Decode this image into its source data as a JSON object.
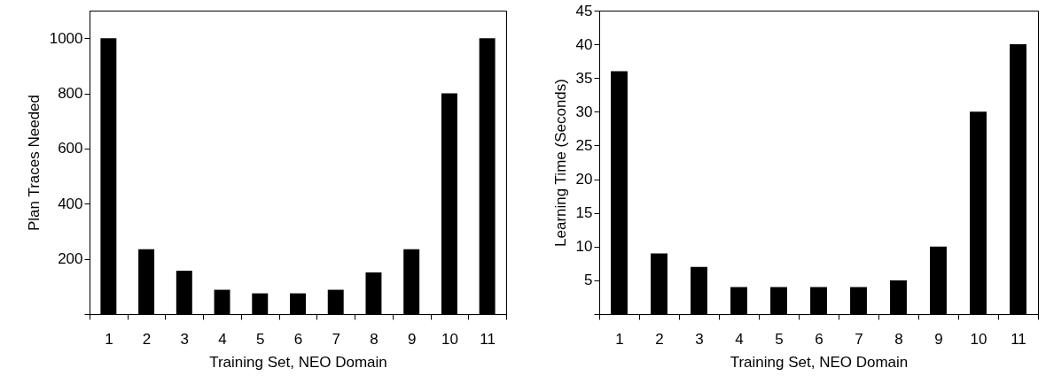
{
  "chart_data": [
    {
      "type": "bar",
      "xlabel": "Training Set, NEO Domain",
      "ylabel": "Plan Traces Needed",
      "categories": [
        "1",
        "2",
        "3",
        "4",
        "5",
        "6",
        "7",
        "8",
        "9",
        "10",
        "11"
      ],
      "series": [
        {
          "color": "#000000",
          "values": [
            1000,
            235,
            157,
            88,
            75,
            75,
            88,
            151,
            235,
            800,
            1000
          ]
        }
      ],
      "ylim": [
        0,
        1100
      ],
      "yticks": [
        {
          "value": 0,
          "label": null
        },
        200,
        400,
        600,
        800,
        1000
      ],
      "grid": false
    },
    {
      "type": "bar",
      "xlabel": "Training Set, NEO Domain",
      "ylabel": "Learning Time (Seconds)",
      "categories": [
        "1",
        "2",
        "3",
        "4",
        "5",
        "6",
        "7",
        "8",
        "9",
        "10",
        "11"
      ],
      "series": [
        {
          "color": "#000000",
          "values": [
            36,
            9,
            7,
            4,
            4,
            4,
            4,
            5,
            10,
            30,
            40
          ]
        }
      ],
      "ylim": [
        0,
        45
      ],
      "yticks": [
        {
          "value": 0,
          "label": null
        },
        5,
        10,
        15,
        20,
        25,
        30,
        35,
        40,
        45
      ],
      "grid": false
    }
  ]
}
